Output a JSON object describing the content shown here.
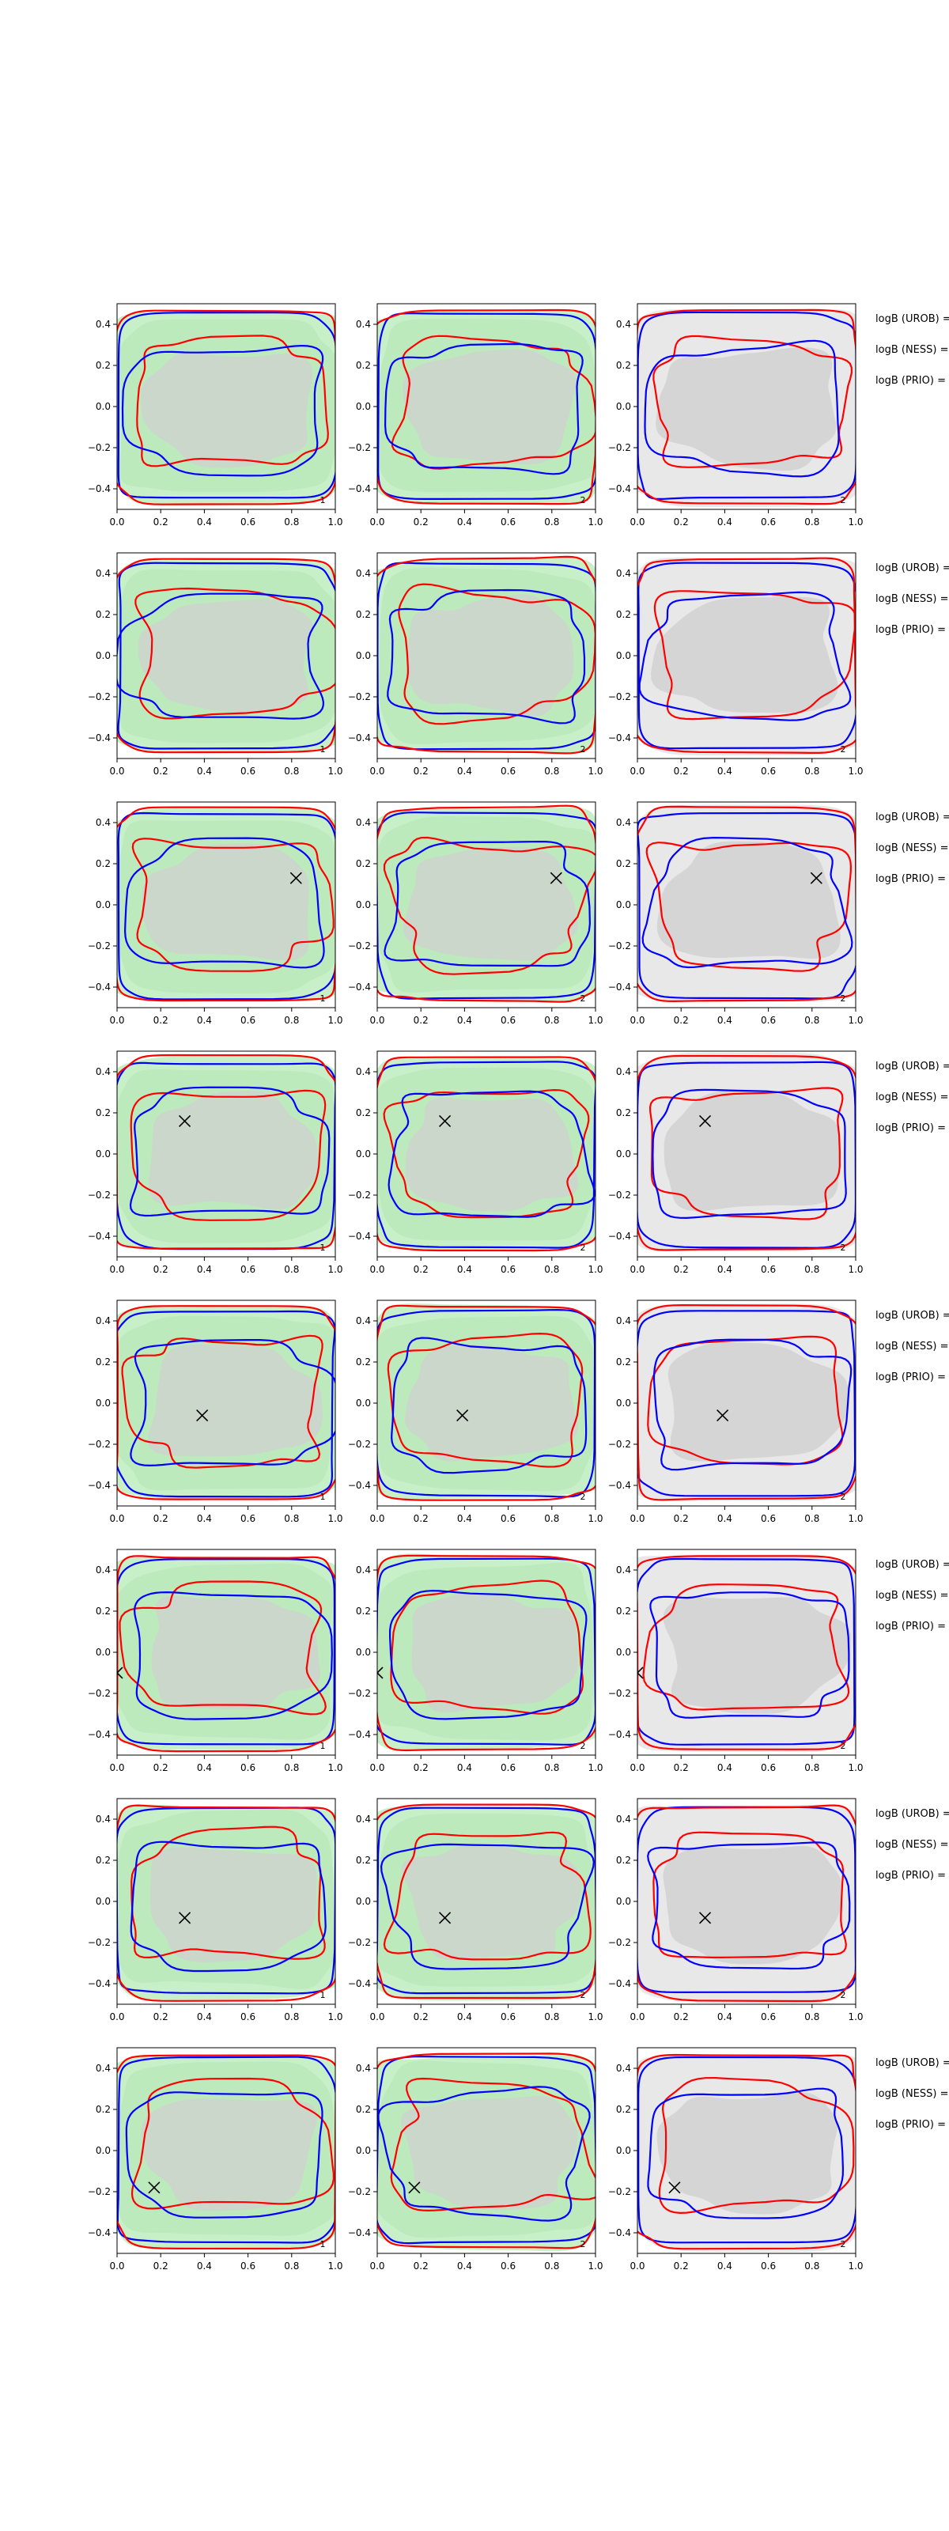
{
  "chart_data": {
    "type": "contour_grid",
    "title": "",
    "rows": 8,
    "cols": 3,
    "xlim": [
      0.0,
      1.0
    ],
    "ylim": [
      -0.5,
      0.5
    ],
    "xticks": [
      "0.0",
      "0.2",
      "0.4",
      "0.6",
      "0.8",
      "1.0"
    ],
    "yticks": [
      "0.4",
      "0.2",
      "0.0",
      "−0.2",
      "−0.4"
    ],
    "ytick_values": [
      0.4,
      0.2,
      0.0,
      -0.2,
      -0.4
    ],
    "xtick_values": [
      0.0,
      0.2,
      0.4,
      0.6,
      0.8,
      1.0
    ],
    "panel_corner_labels": [
      "1",
      "2",
      "2"
    ],
    "side_labels": [
      "logB (UROB) =",
      "logB (NESS) =",
      "logB (PRIO) ="
    ],
    "colors": {
      "red_contour": "#ff0000",
      "blue_contour": "#0000ff",
      "green_fill": "#c8f0c8",
      "green_fill_dark": "#b4e6b4",
      "gray_fill": "#d0d0d0",
      "light_gray_fill": "#e8e8e8",
      "marker": "#000000"
    },
    "markers": [
      null,
      null,
      {
        "x": 0.82,
        "y": 0.13
      },
      {
        "x": 0.31,
        "y": 0.16
      },
      {
        "x": 0.39,
        "y": -0.06
      },
      {
        "x": 0.0,
        "y": -0.1
      },
      {
        "x": 0.31,
        "y": -0.08
      },
      {
        "x": 0.17,
        "y": -0.18
      }
    ]
  }
}
